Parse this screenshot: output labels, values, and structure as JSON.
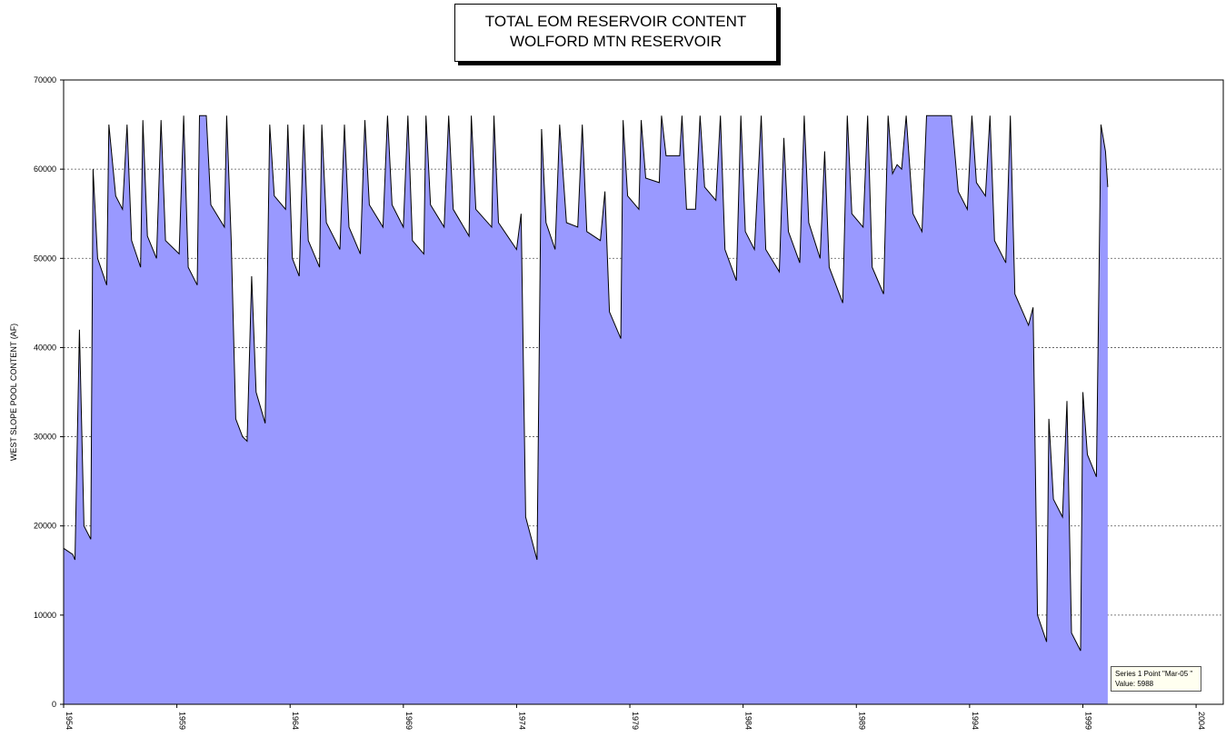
{
  "chart_data": {
    "type": "area",
    "title": "TOTAL EOM RESERVOIR CONTENT",
    "subtitle": "WOLFORD MTN RESERVOIR",
    "ylabel": "WEST SLOPE POOL CONTENT (AF)",
    "xlabel": "",
    "ylim": [
      0,
      70000
    ],
    "yticks": [
      0,
      10000,
      20000,
      30000,
      40000,
      50000,
      60000,
      70000
    ],
    "xticks": [
      "1954",
      "1959",
      "1964",
      "1969",
      "1974",
      "1979",
      "1984",
      "1989",
      "1994",
      "1999",
      "2004"
    ],
    "x_start_year": 1954,
    "x_end_year": 2005.2,
    "grid": "horizontal-dashed",
    "fill_color": "#9999ff",
    "line_color": "#000000",
    "series": [
      {
        "points": [
          [
            1954.0,
            17500
          ],
          [
            1954.4,
            16800
          ],
          [
            1954.5,
            16200
          ],
          [
            1954.7,
            42000
          ],
          [
            1954.9,
            20000
          ],
          [
            1955.2,
            18500
          ],
          [
            1955.3,
            60000
          ],
          [
            1955.5,
            50000
          ],
          [
            1955.9,
            47000
          ],
          [
            1956.0,
            65000
          ],
          [
            1956.3,
            57000
          ],
          [
            1956.6,
            55500
          ],
          [
            1956.8,
            65000
          ],
          [
            1957.0,
            52000
          ],
          [
            1957.4,
            49000
          ],
          [
            1957.5,
            65500
          ],
          [
            1957.7,
            52500
          ],
          [
            1958.1,
            50000
          ],
          [
            1958.3,
            65500
          ],
          [
            1958.5,
            52000
          ],
          [
            1959.1,
            50500
          ],
          [
            1959.3,
            66000
          ],
          [
            1959.5,
            49000
          ],
          [
            1959.9,
            47000
          ],
          [
            1960.0,
            66000
          ],
          [
            1960.3,
            66000
          ],
          [
            1960.5,
            56000
          ],
          [
            1961.1,
            53500
          ],
          [
            1961.2,
            66000
          ],
          [
            1961.4,
            52000
          ],
          [
            1961.6,
            32000
          ],
          [
            1961.9,
            30000
          ],
          [
            1962.1,
            29500
          ],
          [
            1962.3,
            48000
          ],
          [
            1962.5,
            35000
          ],
          [
            1962.9,
            31500
          ],
          [
            1963.1,
            65000
          ],
          [
            1963.3,
            57000
          ],
          [
            1963.8,
            55500
          ],
          [
            1963.9,
            65000
          ],
          [
            1964.1,
            50000
          ],
          [
            1964.4,
            48000
          ],
          [
            1964.6,
            65000
          ],
          [
            1964.8,
            52000
          ],
          [
            1965.3,
            49000
          ],
          [
            1965.4,
            65000
          ],
          [
            1965.6,
            54000
          ],
          [
            1966.2,
            51000
          ],
          [
            1966.4,
            65000
          ],
          [
            1966.6,
            53500
          ],
          [
            1967.1,
            50500
          ],
          [
            1967.3,
            65500
          ],
          [
            1967.5,
            56000
          ],
          [
            1968.1,
            53500
          ],
          [
            1968.3,
            66000
          ],
          [
            1968.5,
            56000
          ],
          [
            1969.0,
            53500
          ],
          [
            1969.2,
            66000
          ],
          [
            1969.4,
            52000
          ],
          [
            1969.9,
            50500
          ],
          [
            1970.0,
            66000
          ],
          [
            1970.2,
            56000
          ],
          [
            1970.8,
            53500
          ],
          [
            1971.0,
            66000
          ],
          [
            1971.2,
            55500
          ],
          [
            1971.9,
            52500
          ],
          [
            1972.0,
            66000
          ],
          [
            1972.2,
            55500
          ],
          [
            1972.9,
            53500
          ],
          [
            1973.0,
            66000
          ],
          [
            1973.2,
            54000
          ],
          [
            1974.0,
            51000
          ],
          [
            1974.2,
            55000
          ],
          [
            1974.4,
            21000
          ],
          [
            1974.9,
            16200
          ],
          [
            1975.1,
            64500
          ],
          [
            1975.3,
            54000
          ],
          [
            1975.7,
            51000
          ],
          [
            1975.9,
            65000
          ],
          [
            1976.2,
            54000
          ],
          [
            1976.7,
            53500
          ],
          [
            1976.9,
            65000
          ],
          [
            1977.1,
            53000
          ],
          [
            1977.7,
            52000
          ],
          [
            1977.9,
            57500
          ],
          [
            1978.1,
            44000
          ],
          [
            1978.6,
            41000
          ],
          [
            1978.7,
            65500
          ],
          [
            1978.9,
            57000
          ],
          [
            1979.4,
            55500
          ],
          [
            1979.5,
            65500
          ],
          [
            1979.7,
            59000
          ],
          [
            1980.3,
            58500
          ],
          [
            1980.4,
            66000
          ],
          [
            1980.6,
            61500
          ],
          [
            1981.2,
            61500
          ],
          [
            1981.3,
            66000
          ],
          [
            1981.5,
            55500
          ],
          [
            1981.9,
            55500
          ],
          [
            1982.1,
            66000
          ],
          [
            1982.3,
            58000
          ],
          [
            1982.8,
            56500
          ],
          [
            1983.0,
            66000
          ],
          [
            1983.2,
            51000
          ],
          [
            1983.7,
            47500
          ],
          [
            1983.9,
            66000
          ],
          [
            1984.1,
            53000
          ],
          [
            1984.5,
            51000
          ],
          [
            1984.8,
            66000
          ],
          [
            1985.0,
            51000
          ],
          [
            1985.6,
            48500
          ],
          [
            1985.8,
            63500
          ],
          [
            1986.0,
            53000
          ],
          [
            1986.5,
            49500
          ],
          [
            1986.7,
            66000
          ],
          [
            1986.9,
            54000
          ],
          [
            1987.4,
            50000
          ],
          [
            1987.6,
            62000
          ],
          [
            1987.8,
            49000
          ],
          [
            1988.4,
            45000
          ],
          [
            1988.6,
            66000
          ],
          [
            1988.8,
            55000
          ],
          [
            1989.3,
            53500
          ],
          [
            1989.5,
            66000
          ],
          [
            1989.7,
            49000
          ],
          [
            1990.2,
            46000
          ],
          [
            1990.4,
            66000
          ],
          [
            1990.6,
            59500
          ],
          [
            1990.8,
            60500
          ],
          [
            1991.0,
            60000
          ],
          [
            1991.2,
            66000
          ],
          [
            1991.5,
            55000
          ],
          [
            1991.9,
            53000
          ],
          [
            1992.1,
            66000
          ],
          [
            1992.6,
            66000
          ],
          [
            1993.2,
            66000
          ],
          [
            1993.5,
            57500
          ],
          [
            1993.9,
            55500
          ],
          [
            1994.1,
            66000
          ],
          [
            1994.3,
            58500
          ],
          [
            1994.7,
            57000
          ],
          [
            1994.9,
            66000
          ],
          [
            1995.1,
            52000
          ],
          [
            1995.6,
            49500
          ],
          [
            1995.8,
            66000
          ],
          [
            1996.0,
            46000
          ],
          [
            1996.6,
            42500
          ],
          [
            1996.8,
            44500
          ],
          [
            1997.0,
            10000
          ],
          [
            1997.4,
            7000
          ],
          [
            1997.5,
            32000
          ],
          [
            1997.7,
            23000
          ],
          [
            1998.1,
            21000
          ],
          [
            1998.3,
            34000
          ],
          [
            1998.5,
            8000
          ],
          [
            1998.9,
            6000
          ],
          [
            1999.0,
            35000
          ],
          [
            1999.2,
            28000
          ],
          [
            1999.6,
            25500
          ],
          [
            1999.8,
            65000
          ],
          [
            2000.0,
            62000
          ],
          [
            2000.1,
            58000
          ]
        ]
      }
    ],
    "tooltip": {
      "line1": "Series 1 Point \"Mar-05 \"",
      "line2": "Value: 5988"
    }
  }
}
